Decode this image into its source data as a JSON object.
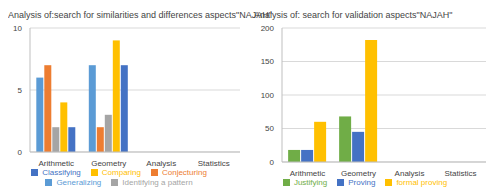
{
  "chart_data": [
    {
      "type": "bar",
      "title": "Analysis of:search for similarities and differences aspects\"NAJAH\"",
      "categories": [
        "Arithmetic",
        "Geometry",
        "Analysis",
        "Statistics"
      ],
      "series": [
        {
          "name": "Generalizing",
          "color": "#5b9bd5",
          "values": [
            6,
            7,
            0,
            0
          ]
        },
        {
          "name": "Conjecturing",
          "color": "#ed7d31",
          "values": [
            7,
            2,
            0,
            0
          ]
        },
        {
          "name": "Identifying a pattern",
          "color": "#a5a5a5",
          "values": [
            2,
            3,
            0,
            0
          ]
        },
        {
          "name": "Comparing",
          "color": "#ffc000",
          "values": [
            4,
            9,
            0,
            0
          ]
        },
        {
          "name": "Classifying",
          "color": "#4472c4",
          "values": [
            2,
            7,
            0,
            0
          ]
        }
      ],
      "ylim": [
        0,
        10
      ],
      "yticks": [
        0,
        5,
        10
      ],
      "grid": true,
      "legend": "bottom"
    },
    {
      "type": "bar",
      "title": "Analysis of: search for validation aspects\"NAJAH\"",
      "categories": [
        "Arithmetic",
        "Geometry",
        "Analysis",
        "Statistics"
      ],
      "series": [
        {
          "name": "Justifying",
          "color": "#70ad47",
          "values": [
            18,
            68,
            0,
            0
          ]
        },
        {
          "name": "Proving",
          "color": "#4472c4",
          "values": [
            18,
            45,
            0,
            0
          ]
        },
        {
          "name": "formal proving",
          "color": "#ffc000",
          "values": [
            60,
            182,
            0,
            0
          ]
        }
      ],
      "ylim": [
        0,
        200
      ],
      "yticks": [
        0,
        50,
        100,
        150,
        200
      ],
      "grid": true,
      "legend": "bottom"
    }
  ]
}
